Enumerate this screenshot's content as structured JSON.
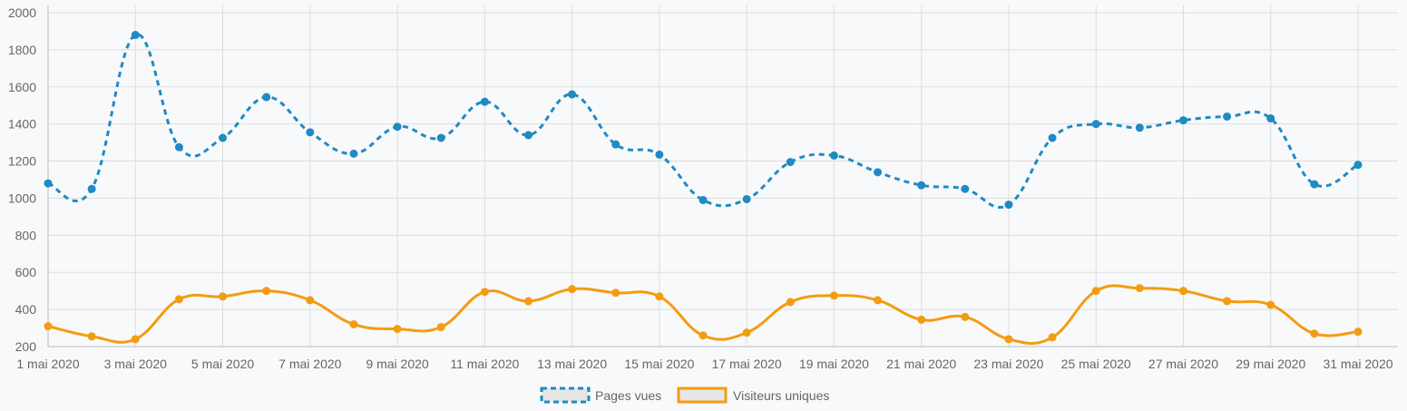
{
  "chart_data": {
    "type": "line",
    "title": "",
    "xlabel": "",
    "ylabel": "",
    "ylim": [
      200,
      2000
    ],
    "y_ticks": [
      200,
      400,
      600,
      800,
      1000,
      1200,
      1400,
      1600,
      1800,
      2000
    ],
    "x_ticks": [
      "1 mai 2020",
      "3 mai 2020",
      "5 mai 2020",
      "7 mai 2020",
      "9 mai 2020",
      "11 mai 2020",
      "13 mai 2020",
      "15 mai 2020",
      "17 mai 2020",
      "19 mai 2020",
      "21 mai 2020",
      "23 mai 2020",
      "25 mai 2020",
      "27 mai 2020",
      "29 mai 2020",
      "31 mai 2020"
    ],
    "x": [
      "1 mai 2020",
      "2 mai 2020",
      "3 mai 2020",
      "4 mai 2020",
      "5 mai 2020",
      "6 mai 2020",
      "7 mai 2020",
      "8 mai 2020",
      "9 mai 2020",
      "10 mai 2020",
      "11 mai 2020",
      "12 mai 2020",
      "13 mai 2020",
      "14 mai 2020",
      "15 mai 2020",
      "16 mai 2020",
      "17 mai 2020",
      "18 mai 2020",
      "19 mai 2020",
      "20 mai 2020",
      "21 mai 2020",
      "22 mai 2020",
      "23 mai 2020",
      "24 mai 2020",
      "25 mai 2020",
      "26 mai 2020",
      "27 mai 2020",
      "28 mai 2020",
      "29 mai 2020",
      "30 mai 2020",
      "31 mai 2020"
    ],
    "grid": true,
    "legend_position": "bottom",
    "series": [
      {
        "name": "Pages vues",
        "color": "#1f8ac4",
        "line_style": "dashed",
        "values": [
          1080,
          1050,
          1880,
          1275,
          1325,
          1545,
          1355,
          1240,
          1385,
          1325,
          1520,
          1340,
          1560,
          1290,
          1235,
          990,
          995,
          1195,
          1230,
          1140,
          1070,
          1050,
          965,
          1325,
          1400,
          1380,
          1420,
          1440,
          1430,
          1075,
          1180
        ]
      },
      {
        "name": "Visiteurs uniques",
        "color": "#f39c12",
        "line_style": "solid",
        "values": [
          310,
          255,
          240,
          455,
          470,
          500,
          450,
          320,
          295,
          305,
          495,
          445,
          510,
          490,
          470,
          260,
          275,
          440,
          475,
          450,
          345,
          360,
          240,
          250,
          500,
          515,
          500,
          445,
          425,
          270,
          280
        ]
      }
    ]
  }
}
